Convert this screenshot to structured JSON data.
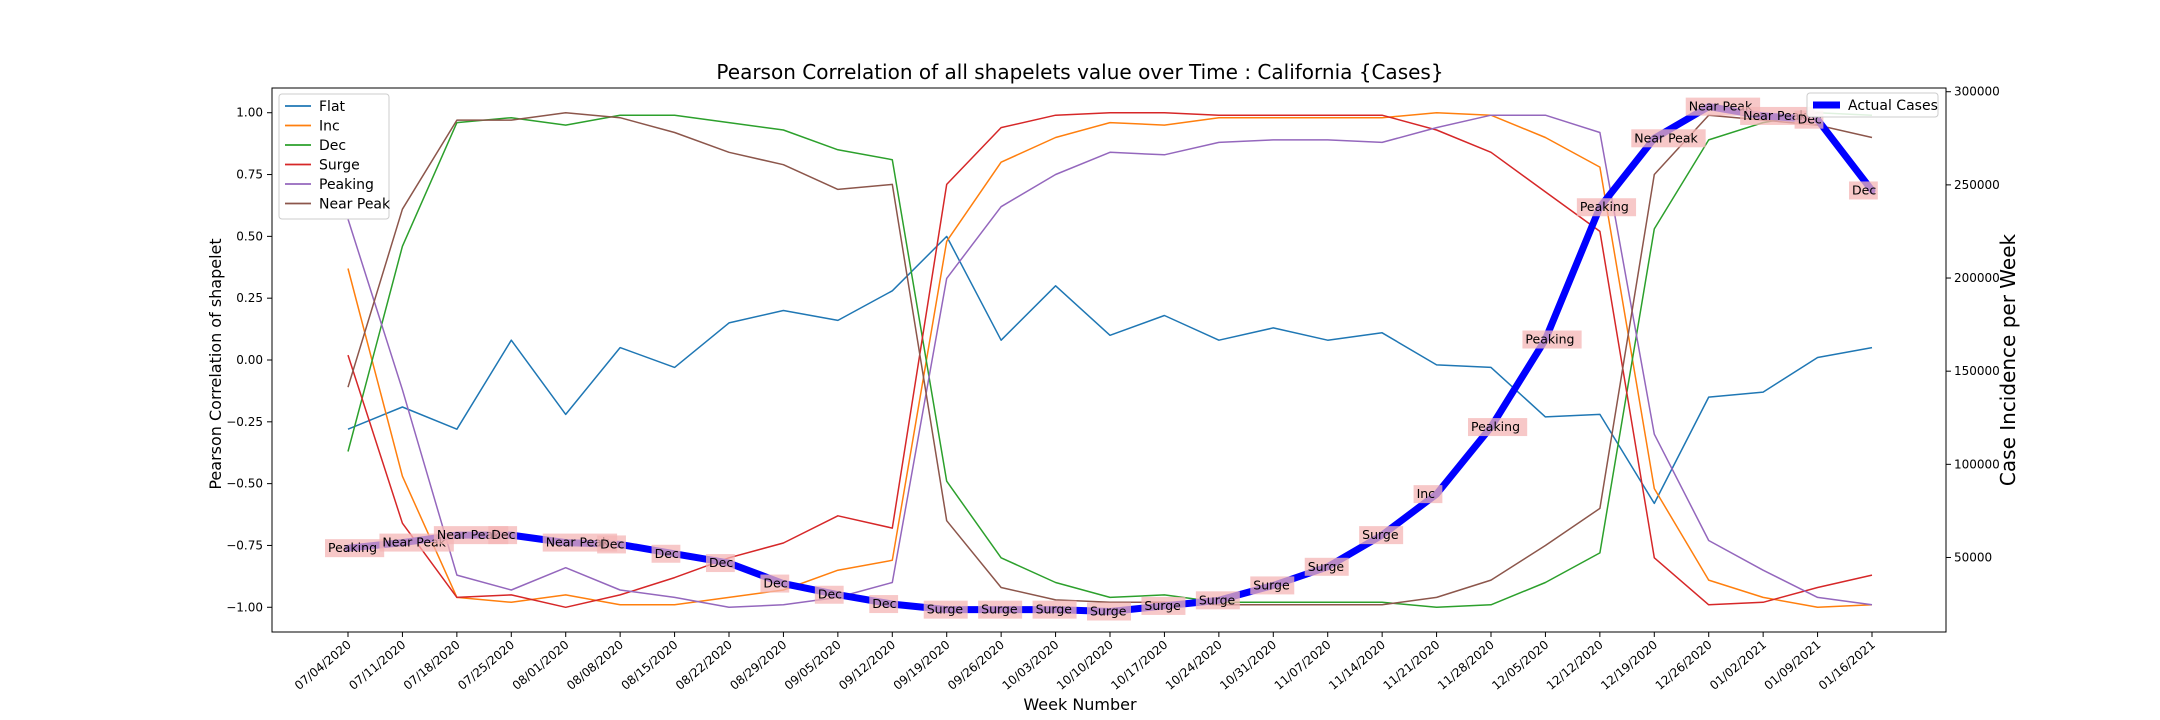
{
  "chart_data": {
    "type": "line",
    "title": "Pearson Correlation of all shapelets value over Time : California {Cases}",
    "xlabel": "Week Number",
    "ylabel": "Pearson Correlation of shapelet",
    "y2label": "Case Incidence per Week",
    "ylim": [
      -1.1,
      1.1
    ],
    "y2lim": [
      10000,
      302000
    ],
    "yticks": [
      "1.00",
      "0.75",
      "0.50",
      "0.25",
      "0.00",
      "−0.25",
      "−0.50",
      "−0.75",
      "−1.00"
    ],
    "y2ticks": [
      "300000",
      "250000",
      "200000",
      "150000",
      "100000",
      "50000"
    ],
    "grid": false,
    "legend_left_position": "upper-left",
    "legend_right_position": "upper-right",
    "categories": [
      "07/04/2020",
      "07/11/2020",
      "07/18/2020",
      "07/25/2020",
      "08/01/2020",
      "08/08/2020",
      "08/15/2020",
      "08/22/2020",
      "08/29/2020",
      "09/05/2020",
      "09/12/2020",
      "09/19/2020",
      "09/26/2020",
      "10/03/2020",
      "10/10/2020",
      "10/17/2020",
      "10/24/2020",
      "10/31/2020",
      "11/07/2020",
      "11/14/2020",
      "11/21/2020",
      "11/28/2020",
      "12/05/2020",
      "12/12/2020",
      "12/19/2020",
      "12/26/2020",
      "01/02/2021",
      "01/09/2021",
      "01/16/2021"
    ],
    "series": [
      {
        "name": "Flat",
        "color": "#1f77b4",
        "values": [
          -0.28,
          -0.19,
          -0.28,
          0.08,
          -0.22,
          0.05,
          -0.03,
          0.15,
          0.2,
          0.16,
          0.28,
          0.5,
          0.08,
          0.3,
          0.1,
          0.18,
          0.08,
          0.13,
          0.08,
          0.11,
          -0.02,
          -0.03,
          -0.23,
          -0.22,
          -0.58,
          -0.15,
          -0.13,
          0.01,
          0.05
        ]
      },
      {
        "name": "Inc",
        "color": "#ff7f0e",
        "values": [
          0.37,
          -0.47,
          -0.96,
          -0.98,
          -0.95,
          -0.99,
          -0.99,
          -0.96,
          -0.93,
          -0.85,
          -0.81,
          0.48,
          0.8,
          0.9,
          0.96,
          0.95,
          0.98,
          0.98,
          0.98,
          0.98,
          1.0,
          0.99,
          0.9,
          0.78,
          -0.52,
          -0.89,
          -0.96,
          -1.0,
          -0.99
        ]
      },
      {
        "name": "Dec",
        "color": "#2ca02c",
        "values": [
          -0.37,
          0.46,
          0.96,
          0.98,
          0.95,
          0.99,
          0.99,
          0.96,
          0.93,
          0.85,
          0.81,
          -0.49,
          -0.8,
          -0.9,
          -0.96,
          -0.95,
          -0.98,
          -0.98,
          -0.98,
          -0.98,
          -1.0,
          -0.99,
          -0.9,
          -0.78,
          0.53,
          0.89,
          0.96,
          1.0,
          0.99
        ]
      },
      {
        "name": "Surge",
        "color": "#d62728",
        "values": [
          0.02,
          -0.66,
          -0.96,
          -0.95,
          -1.0,
          -0.95,
          -0.88,
          -0.8,
          -0.74,
          -0.63,
          -0.68,
          0.71,
          0.94,
          0.99,
          1.0,
          1.0,
          0.99,
          0.99,
          0.99,
          0.99,
          0.93,
          0.84,
          0.68,
          0.52,
          -0.8,
          -0.99,
          -0.98,
          -0.92,
          -0.87
        ]
      },
      {
        "name": "Peaking",
        "color": "#9467bd",
        "values": [
          0.57,
          -0.12,
          -0.87,
          -0.93,
          -0.84,
          -0.93,
          -0.96,
          -1.0,
          -0.99,
          -0.96,
          -0.9,
          0.33,
          0.62,
          0.75,
          0.84,
          0.83,
          0.88,
          0.89,
          0.89,
          0.88,
          0.94,
          0.99,
          0.99,
          0.92,
          -0.3,
          -0.73,
          -0.85,
          -0.96,
          -0.99
        ]
      },
      {
        "name": "Near Peak",
        "color": "#8c564b",
        "values": [
          -0.11,
          0.61,
          0.97,
          0.97,
          1.0,
          0.98,
          0.92,
          0.84,
          0.79,
          0.69,
          0.71,
          -0.65,
          -0.92,
          -0.97,
          -0.98,
          -0.98,
          -0.99,
          -0.99,
          -0.99,
          -0.99,
          -0.96,
          -0.89,
          -0.75,
          -0.6,
          0.75,
          0.99,
          0.97,
          0.95,
          0.9
        ]
      }
    ],
    "actual_cases": {
      "name": "Actual Cases",
      "color": "#0000ff",
      "values": [
        55000,
        58000,
        62000,
        62000,
        58000,
        57000,
        52000,
        47000,
        36000,
        30000,
        25000,
        22000,
        22000,
        22000,
        21000,
        24000,
        27000,
        35000,
        45000,
        62000,
        84000,
        120000,
        167000,
        238000,
        275000,
        292000,
        287000,
        285000,
        247000
      ]
    },
    "annotations": [
      "Peaking",
      "Near Peak",
      "Near Peak",
      "Dec",
      "Near Peak",
      "Dec",
      "Dec",
      "Dec",
      "Dec",
      "Dec",
      "Dec",
      "Surge",
      "Surge",
      "Surge",
      "Surge",
      "Surge",
      "Surge",
      "Surge",
      "Surge",
      "Surge",
      "Inc",
      "Peaking",
      "Peaking",
      "Peaking",
      "Near Peak",
      "Near Peak",
      "Near Peak",
      "Dec",
      "Dec"
    ]
  }
}
